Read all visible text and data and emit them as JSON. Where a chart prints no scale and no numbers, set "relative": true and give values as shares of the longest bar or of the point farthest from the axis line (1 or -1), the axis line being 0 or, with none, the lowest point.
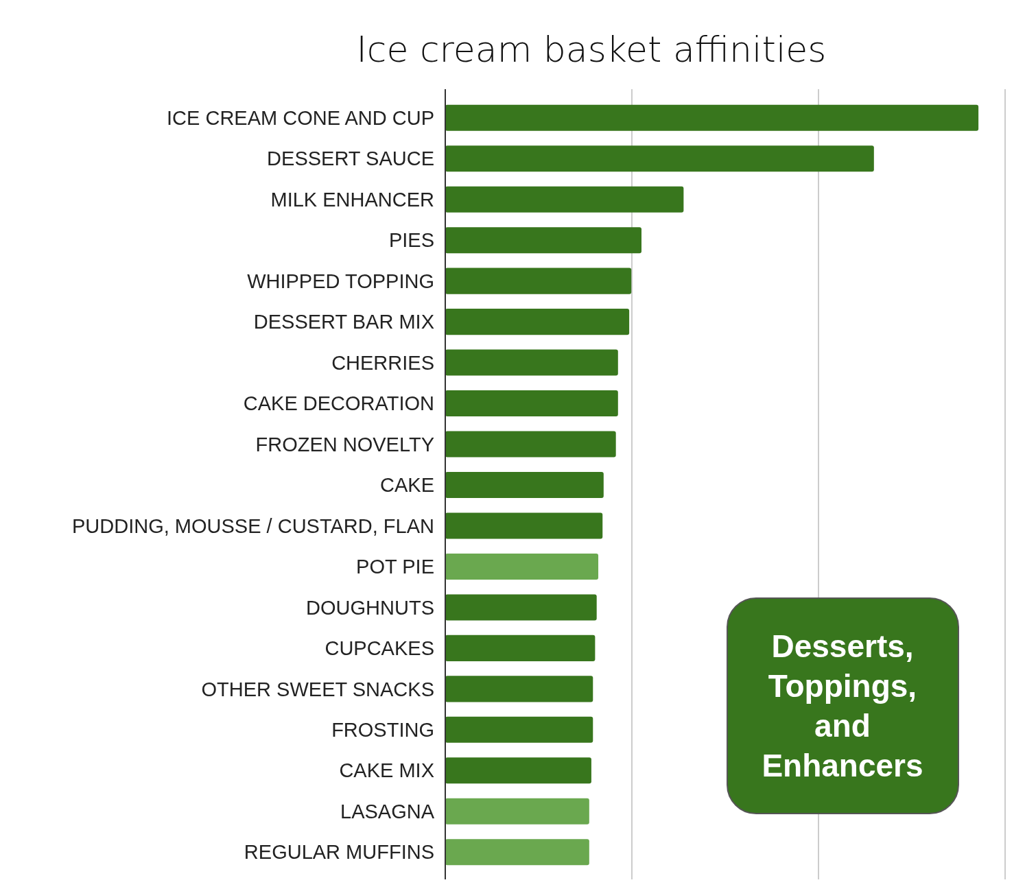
{
  "chart_data": {
    "type": "bar",
    "orientation": "horizontal",
    "relative": true,
    "title": "Ice cream basket affinities",
    "categories": [
      "ICE CREAM CONE AND CUP",
      "DESSERT SAUCE",
      "MILK ENHANCER",
      "PIES",
      "WHIPPED TOPPING",
      "DESSERT BAR MIX",
      "CHERRIES",
      "CAKE DECORATION",
      "FROZEN NOVELTY",
      "CAKE",
      "PUDDING, MOUSSE / CUSTARD, FLAN",
      "POT PIE",
      "DOUGHNUTS",
      "CUPCAKES",
      "OTHER SWEET SNACKS",
      "FROSTING",
      "CAKE MIX",
      "LASAGNA",
      "REGULAR MUFFINS"
    ],
    "values": [
      1,
      0.804,
      0.447,
      0.368,
      0.349,
      0.345,
      0.324,
      0.324,
      0.32,
      0.297,
      0.295,
      0.287,
      0.284,
      0.281,
      0.277,
      0.277,
      0.274,
      0.27,
      0.27
    ],
    "colors": [
      "#38761d",
      "#38761d",
      "#38761d",
      "#38761d",
      "#38761d",
      "#38761d",
      "#38761d",
      "#38761d",
      "#38761d",
      "#38761d",
      "#38761d",
      "#6aa84f",
      "#38761d",
      "#38761d",
      "#38761d",
      "#38761d",
      "#38761d",
      "#6aa84f",
      "#6aa84f"
    ],
    "ref_lines": [
      {
        "axis": "x",
        "value": 0.35,
        "color": "#cccccc"
      },
      {
        "axis": "x",
        "value": 0.7,
        "color": "#cccccc"
      },
      {
        "axis": "x",
        "value": 1.05,
        "color": "#cccccc"
      }
    ],
    "annotations": [
      "Desserts, Toppings, and Enhancers"
    ]
  }
}
